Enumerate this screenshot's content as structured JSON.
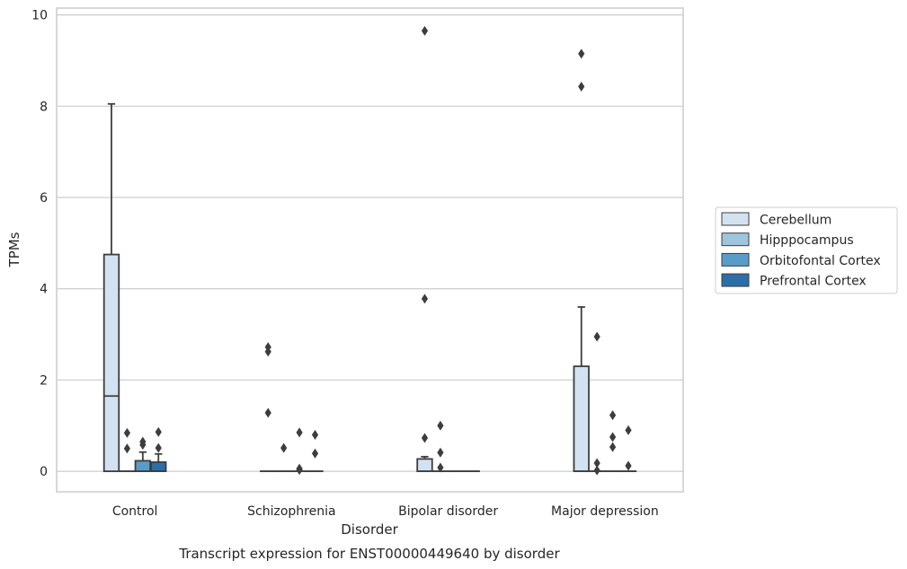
{
  "chart_data": {
    "type": "box",
    "caption": "Transcript expression for ENST00000449640 by disorder",
    "xlabel": "Disorder",
    "ylabel": "TPMs",
    "ylim": [
      -0.45,
      10.15
    ],
    "yticks": [
      0,
      2,
      4,
      6,
      8,
      10
    ],
    "categories": [
      "Control",
      "Schizophrenia",
      "Bipolar disorder",
      "Major depression"
    ],
    "legend_position": "right",
    "series": [
      {
        "name": "Cerebellum",
        "color": "#d3e2f1",
        "boxes": [
          {
            "q1": 0,
            "median": 1.65,
            "q3": 4.75,
            "whisker_low": 0,
            "whisker_high": 8.05,
            "outliers": []
          },
          {
            "q1": 0,
            "median": 0,
            "q3": 0,
            "whisker_low": 0,
            "whisker_high": 0,
            "outliers": [
              2.62,
              2.72,
              1.28
            ]
          },
          {
            "q1": 0,
            "median": 0,
            "q3": 0.27,
            "whisker_low": 0,
            "whisker_high": 0.32,
            "outliers": [
              9.65,
              3.78,
              0.73
            ]
          },
          {
            "q1": 0,
            "median": 0,
            "q3": 2.3,
            "whisker_low": 0,
            "whisker_high": 3.6,
            "outliers": [
              9.15,
              8.43
            ]
          }
        ]
      },
      {
        "name": "Hipppocampus",
        "color": "#9ec5de",
        "boxes": [
          {
            "q1": 0,
            "median": 0,
            "q3": 0,
            "whisker_low": 0,
            "whisker_high": 0,
            "outliers": [
              0.84,
              0.5
            ]
          },
          {
            "q1": 0,
            "median": 0,
            "q3": 0,
            "whisker_low": 0,
            "whisker_high": 0,
            "outliers": [
              0.51
            ]
          },
          {
            "q1": 0,
            "median": 0,
            "q3": 0,
            "whisker_low": 0,
            "whisker_high": 0,
            "outliers": [
              1.0,
              0.41,
              0.08
            ]
          },
          {
            "q1": 0,
            "median": 0,
            "q3": 0,
            "whisker_low": 0,
            "whisker_high": 0,
            "outliers": [
              2.95,
              0.18,
              0.02
            ]
          }
        ]
      },
      {
        "name": "Orbitofontal Cortex",
        "color": "#5a9cc8",
        "boxes": [
          {
            "q1": 0,
            "median": 0,
            "q3": 0.23,
            "whisker_low": 0,
            "whisker_high": 0.42,
            "outliers": [
              0.65,
              0.58
            ]
          },
          {
            "q1": 0,
            "median": 0,
            "q3": 0,
            "whisker_low": 0,
            "whisker_high": 0,
            "outliers": [
              0.85,
              0.06,
              0.03
            ]
          },
          {
            "q1": 0,
            "median": 0,
            "q3": 0,
            "whisker_low": 0,
            "whisker_high": 0,
            "outliers": []
          },
          {
            "q1": 0,
            "median": 0,
            "q3": 0,
            "whisker_low": 0,
            "whisker_high": 0,
            "outliers": [
              1.23,
              0.75,
              0.53
            ]
          }
        ]
      },
      {
        "name": "Prefrontal Cortex",
        "color": "#2b6ea8",
        "boxes": [
          {
            "q1": 0,
            "median": 0,
            "q3": 0.2,
            "whisker_low": 0,
            "whisker_high": 0.38,
            "outliers": [
              0.86,
              0.51
            ]
          },
          {
            "q1": 0,
            "median": 0,
            "q3": 0,
            "whisker_low": 0,
            "whisker_high": 0,
            "outliers": [
              0.8,
              0.39
            ]
          },
          {
            "q1": 0,
            "median": 0,
            "q3": 0,
            "whisker_low": 0,
            "whisker_high": 0,
            "outliers": []
          },
          {
            "q1": 0,
            "median": 0,
            "q3": 0,
            "whisker_low": 0,
            "whisker_high": 0,
            "outliers": [
              0.9,
              0.12
            ]
          }
        ]
      }
    ]
  }
}
